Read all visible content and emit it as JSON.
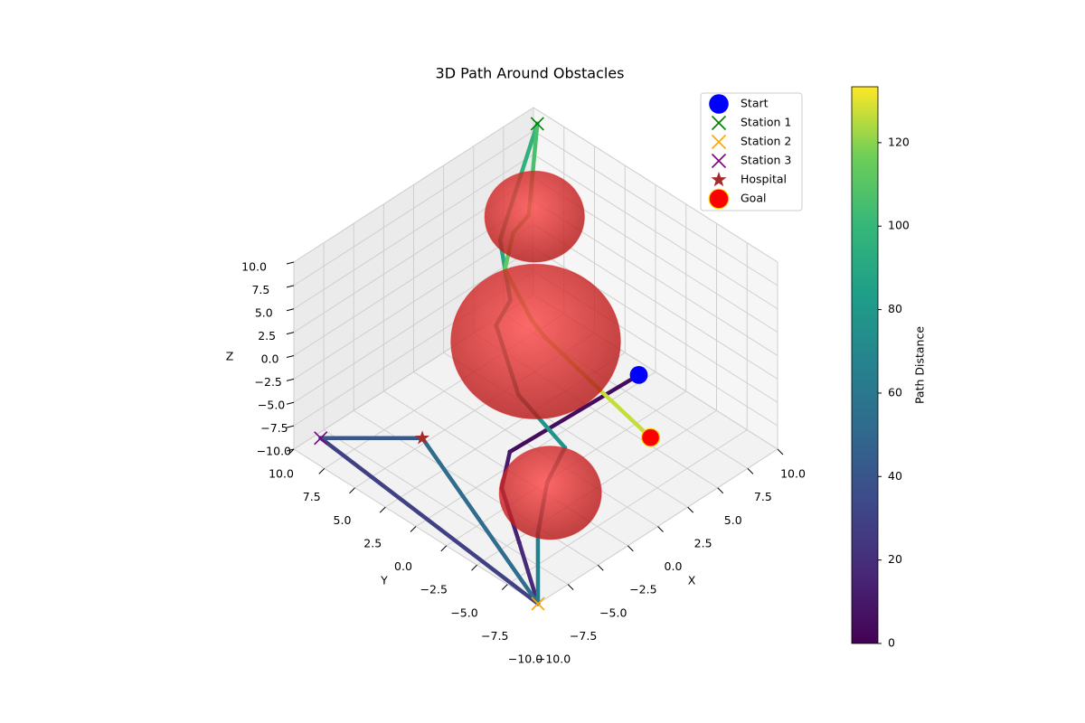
{
  "chart_data": {
    "type": "path3d",
    "title": "3D Path Around Obstacles",
    "xlabel": "X",
    "ylabel": "Y",
    "zlabel": "Z",
    "xlim": [
      -10,
      10
    ],
    "ylim": [
      -10,
      10
    ],
    "zlim": [
      -10,
      10
    ],
    "xticks": [
      {
        "value": -10,
        "label": "−10.0"
      },
      {
        "value": -7.5,
        "label": "−7.5"
      },
      {
        "value": -5,
        "label": "−5.0"
      },
      {
        "value": -2.5,
        "label": "−2.5"
      },
      {
        "value": 0,
        "label": "0.0"
      },
      {
        "value": 2.5,
        "label": "2.5"
      },
      {
        "value": 5,
        "label": "5.0"
      },
      {
        "value": 7.5,
        "label": "7.5"
      },
      {
        "value": 10,
        "label": "10.0"
      }
    ],
    "yticks": [
      {
        "value": -10,
        "label": "−10.0"
      },
      {
        "value": -7.5,
        "label": "−7.5"
      },
      {
        "value": -5,
        "label": "−5.0"
      },
      {
        "value": -2.5,
        "label": "−2.5"
      },
      {
        "value": 0,
        "label": "0.0"
      },
      {
        "value": 2.5,
        "label": "2.5"
      },
      {
        "value": 5,
        "label": "5.0"
      },
      {
        "value": 7.5,
        "label": "7.5"
      },
      {
        "value": 10,
        "label": "10.0"
      }
    ],
    "zticks": [
      {
        "value": -10,
        "label": "−10.0"
      },
      {
        "value": -7.5,
        "label": "−7.5"
      },
      {
        "value": -5,
        "label": "−5.0"
      },
      {
        "value": -2.5,
        "label": "−2.5"
      },
      {
        "value": 0,
        "label": "0.0"
      },
      {
        "value": 2.5,
        "label": "2.5"
      },
      {
        "value": 5,
        "label": "5.0"
      },
      {
        "value": 7.5,
        "label": "7.5"
      },
      {
        "value": 10,
        "label": "10.0"
      }
    ],
    "grid": true,
    "colormap": "viridis",
    "colorbar_label": "Path Distance",
    "clim": [
      0,
      133.4
    ],
    "colorbar_ticks": [
      0,
      20,
      40,
      60,
      80,
      100,
      120
    ],
    "path": {
      "x": [
        3,
        -4.3,
        -6.4,
        -8,
        -10,
        -10,
        -5.8,
        -10,
        -9.7,
        -7.2,
        -4.8,
        -4.5,
        -2.7,
        -1.1,
        1.2,
        9.1,
        4,
        2.8,
        1.3,
        0.3,
        0.4,
        0.4,
        -0.6
      ],
      "y": [
        -5.5,
        -2.1,
        -3.5,
        -6.5,
        -10,
        7.8,
        3.6,
        -10,
        -9.7,
        -8,
        -7.1,
        -3,
        0.6,
        1,
        4.1,
        8.8,
        4.5,
        4.6,
        3.8,
        0.6,
        -0.3,
        -4.9,
        -10
      ],
      "z": [
        0,
        -5,
        -6,
        -8,
        -10,
        -7,
        -7,
        -10,
        -3,
        -1,
        0,
        2,
        5,
        6,
        8,
        10,
        8,
        7,
        5,
        3,
        2,
        0,
        0
      ],
      "distance": [
        0,
        9.5,
        12,
        16,
        20,
        38,
        44,
        61,
        68,
        72,
        75,
        80,
        85,
        87,
        91,
        103,
        110,
        112,
        114,
        118,
        119,
        124,
        129.5
      ]
    },
    "obstacles": [
      {
        "x": 5,
        "y": 5,
        "z": 6.6,
        "radius": 4,
        "color": "#e31a1c"
      },
      {
        "x": 0,
        "y": 0,
        "z": 1.5,
        "radius": 6.8,
        "color": "#e31a1c"
      },
      {
        "x": -5.3,
        "y": -6.4,
        "z": -5,
        "radius": 4.1,
        "color": "#e31a1c"
      }
    ],
    "markers": [
      {
        "name": "Start",
        "marker": "o",
        "color": "#0000ff",
        "x": 3,
        "y": -5.5,
        "z": 0
      },
      {
        "name": "Station 1",
        "marker": "x",
        "color": "#008000",
        "x": 9.1,
        "y": 8.8,
        "z": 10
      },
      {
        "name": "Station 2",
        "marker": "x",
        "color": "#ffa500",
        "x": -10,
        "y": -10,
        "z": -10
      },
      {
        "name": "Station 3",
        "marker": "x",
        "color": "#800080",
        "x": -10,
        "y": 7.8,
        "z": -7
      },
      {
        "name": "Hospital",
        "marker": "*",
        "color": "#a52a2a",
        "x": -5.8,
        "y": 3.6,
        "z": -7
      },
      {
        "name": "Goal",
        "marker": "o",
        "color": "#ff0000",
        "x": -0.6,
        "y": -10,
        "z": 0
      }
    ],
    "legend": "upper right"
  }
}
